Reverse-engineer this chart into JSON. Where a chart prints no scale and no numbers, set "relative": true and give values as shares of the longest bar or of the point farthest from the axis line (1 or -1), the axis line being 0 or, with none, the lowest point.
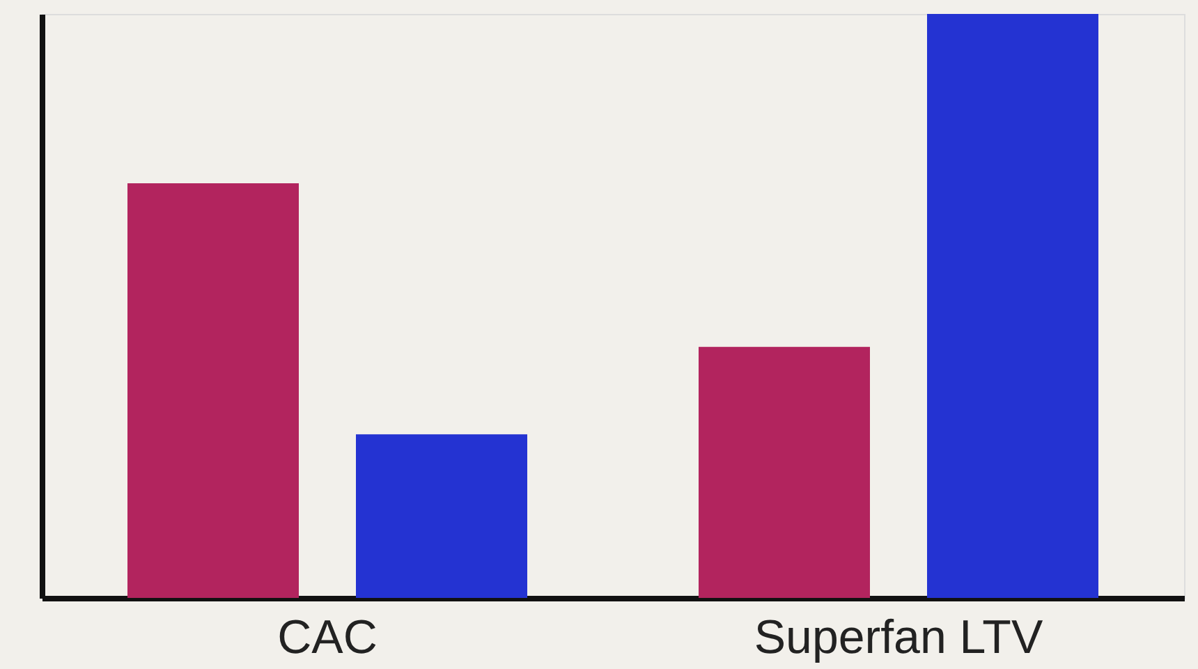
{
  "chart_data": {
    "type": "bar",
    "relative": true,
    "categories": [
      "CAC",
      "Superfan LTV"
    ],
    "series": [
      {
        "color": "#b2245e",
        "values": [
          0.71,
          0.43
        ]
      },
      {
        "color": "#2433d2",
        "values": [
          0.28,
          1.0
        ]
      }
    ],
    "grid": false,
    "legend": false
  }
}
